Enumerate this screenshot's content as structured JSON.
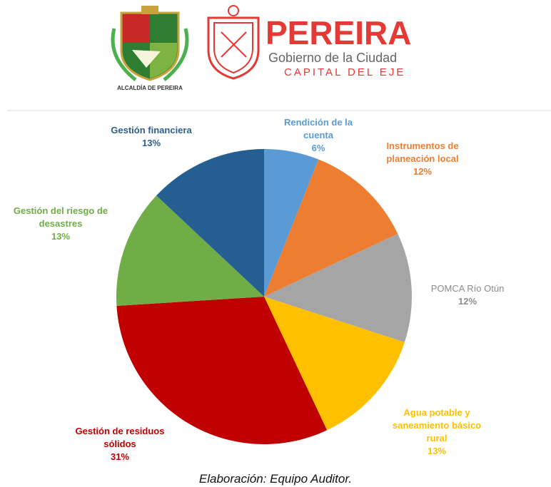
{
  "header": {
    "city": "PEREIRA",
    "line1": "Gobierno de la Ciudad",
    "line2": "CAPITAL DEL EJE",
    "shield_caption": "ALCALDÍA DE PEREIRA"
  },
  "chart_data": {
    "type": "pie",
    "categories": [
      "Rendición de la cuenta",
      "Instrumentos de planeación local",
      "POMCA Río Otún",
      "Agua potable y saneamiento básico rural",
      "Gestión de residuos sólidos",
      "Gestión del riesgo de desastres",
      "Gestión financiera"
    ],
    "values": [
      6,
      12,
      12,
      13,
      31,
      13,
      13
    ],
    "value_labels": [
      "6%",
      "12%",
      "12%",
      "13%",
      "31%",
      "13%",
      "13%"
    ],
    "colors": [
      "#5b9bd5",
      "#ed7d31",
      "#a5a5a5",
      "#ffc000",
      "#c00000",
      "#70ad47",
      "#255e91"
    ],
    "label_colors": [
      "#5b9bd5",
      "#ed7d31",
      "#8c8c8c",
      "#ffc000",
      "#c00000",
      "#70ad47",
      "#2e5d8f"
    ]
  },
  "caption": "Elaboración: Equipo Auditor."
}
